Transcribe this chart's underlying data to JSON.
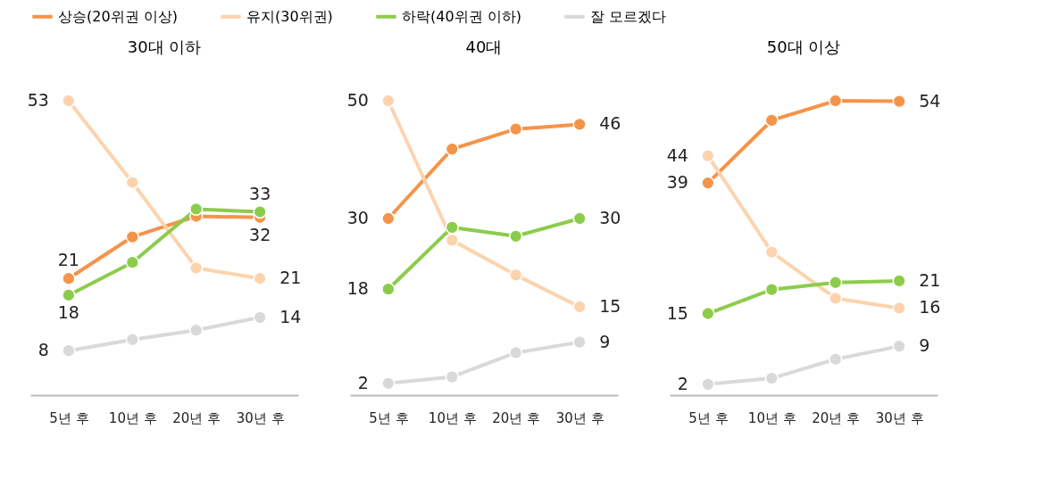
{
  "chart_data": [
    {
      "type": "line",
      "title": "30대 이하",
      "categories": [
        "5년 후",
        "10년 후",
        "20년 후",
        "30년 후"
      ],
      "tick_labels": "x",
      "marker": "circle",
      "legend": "top right",
      "grid": false,
      "series": [
        {
          "name": "상승(20위권 이상)",
          "color": "#f4944a",
          "values": [
            21,
            28.5,
            32.2,
            32
          ],
          "value_labels": [
            "21",
            null,
            null,
            "32"
          ]
        },
        {
          "name": "유지(30위권)",
          "color": "#fdd3ae",
          "values": [
            53,
            38.3,
            22.9,
            21
          ],
          "value_labels": [
            "53",
            null,
            null,
            "21"
          ]
        },
        {
          "name": "하락(40위권 이하)",
          "color": "#8ccc4c",
          "values": [
            18,
            23.9,
            33.5,
            33
          ],
          "value_labels": [
            "18",
            null,
            null,
            "33"
          ]
        },
        {
          "name": "잘 모르겠다",
          "color": "#d9d9d9",
          "values": [
            8,
            10,
            11.7,
            14
          ],
          "value_labels": [
            "8",
            null,
            null,
            "14"
          ]
        }
      ]
    },
    {
      "type": "line",
      "title": "40대",
      "categories": [
        "5년 후",
        "10년 후",
        "20년 후",
        "30년 후"
      ],
      "tick_labels": "x",
      "marker": "circle",
      "legend": "top right",
      "grid": false,
      "series": [
        {
          "name": "상승(20위권 이상)",
          "color": "#f4944a",
          "values": [
            30,
            41.8,
            45.2,
            46
          ],
          "value_labels": [
            "30",
            null,
            null,
            "46"
          ]
        },
        {
          "name": "유지(30위권)",
          "color": "#fdd3ae",
          "values": [
            50,
            26.3,
            20.4,
            15
          ],
          "value_labels": [
            "50",
            null,
            null,
            "15"
          ]
        },
        {
          "name": "하락(40위권 이하)",
          "color": "#8ccc4c",
          "values": [
            18,
            28.5,
            27,
            30
          ],
          "value_labels": [
            "18",
            null,
            null,
            "30"
          ]
        },
        {
          "name": "잘 모르겠다",
          "color": "#d9d9d9",
          "values": [
            2,
            3.1,
            7.2,
            9
          ],
          "value_labels": [
            "2",
            null,
            null,
            "9"
          ]
        }
      ]
    },
    {
      "type": "line",
      "title": "50대 이상",
      "categories": [
        "5년 후",
        "10년 후",
        "20년 후",
        "30년 후"
      ],
      "tick_labels": "x",
      "marker": "circle",
      "legend": "top right",
      "grid": false,
      "series": [
        {
          "name": "상승(20위권 이상)",
          "color": "#f4944a",
          "values": [
            39,
            50.5,
            54.1,
            54
          ],
          "value_labels": [
            "39",
            null,
            null,
            "54"
          ]
        },
        {
          "name": "유지(30위권)",
          "color": "#fdd3ae",
          "values": [
            44,
            26.3,
            17.8,
            16
          ],
          "value_labels": [
            "44",
            null,
            null,
            "16"
          ]
        },
        {
          "name": "하락(40위권 이하)",
          "color": "#8ccc4c",
          "values": [
            15,
            19.4,
            20.7,
            21
          ],
          "value_labels": [
            "15",
            null,
            null,
            "21"
          ]
        },
        {
          "name": "잘 모르겠다",
          "color": "#d9d9d9",
          "values": [
            2,
            3.1,
            6.6,
            9
          ],
          "value_labels": [
            "2",
            null,
            null,
            "9"
          ]
        }
      ]
    }
  ]
}
